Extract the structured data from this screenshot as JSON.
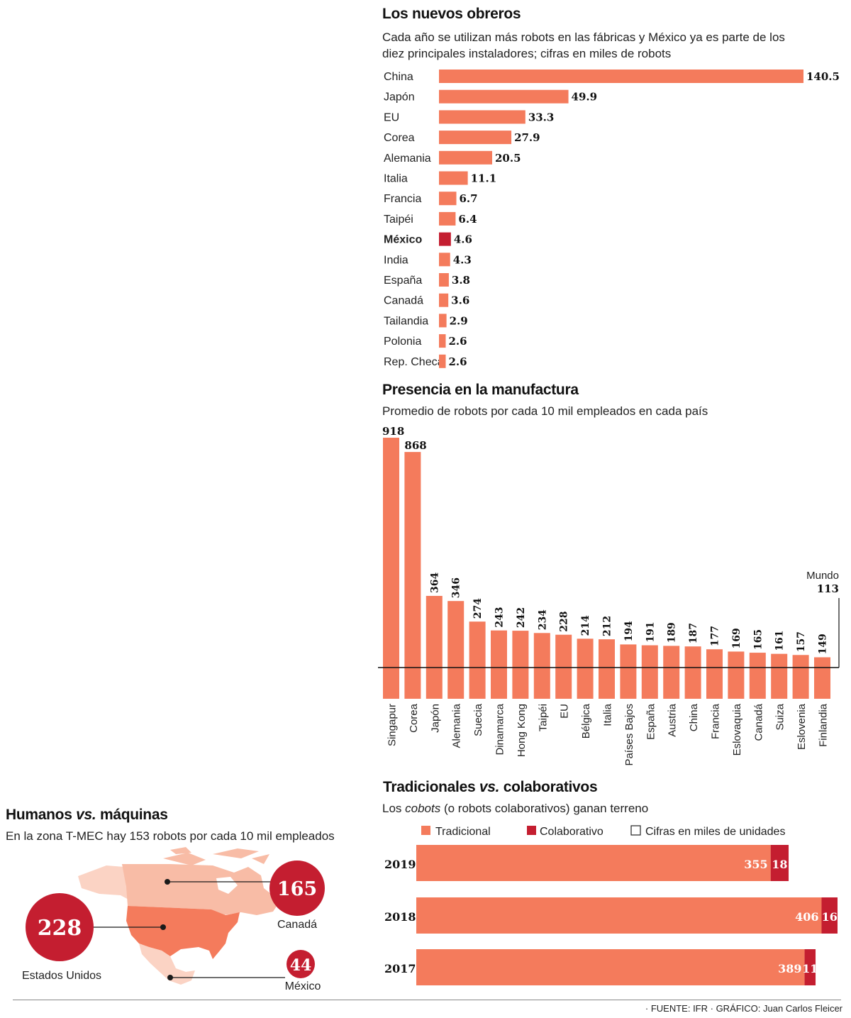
{
  "colors": {
    "bar": "#f47b5c",
    "highlight": "#c41e30",
    "map_light": "#f8bca6",
    "map_mid": "#f47b5c",
    "circle": "#c41e30",
    "text": "#1a1a1a"
  },
  "chart_data": [
    {
      "type": "bar",
      "orientation": "horizontal",
      "title": "Los nuevos obreros",
      "subtitle_line1": "Cada año se utilizan más robots en las fábricas y México ya es parte de los",
      "subtitle_line2": "diez principales instaladores; cifras en miles de robots",
      "categories": [
        "China",
        "Japón",
        "EU",
        "Corea",
        "Alemania",
        "Italia",
        "Francia",
        "Taipéi",
        "México",
        "India",
        "España",
        "Canadá",
        "Tailandia",
        "Polonia",
        "Rep. Checa"
      ],
      "values": [
        140.5,
        49.9,
        33.3,
        27.9,
        20.5,
        11.1,
        6.7,
        6.4,
        4.6,
        4.3,
        3.8,
        3.6,
        2.9,
        2.6,
        2.6
      ],
      "labels": [
        "140.5",
        "49.9",
        "33.3",
        "27.9",
        "20.5",
        "11.1",
        "6.7",
        "6.4",
        "4.6",
        "4.3",
        "3.8",
        "3.6",
        "2.9",
        "2.6",
        "2.6"
      ],
      "highlight": "México",
      "unit": "miles de robots"
    },
    {
      "type": "bar",
      "orientation": "vertical",
      "title": "Presencia en la manufactura",
      "subtitle": "Promedio de robots por cada 10 mil empleados en cada país",
      "categories": [
        "Singapur",
        "Corea",
        "Japón",
        "Alemania",
        "Suecia",
        "Dinamarca",
        "Hong Kong",
        "Taipéi",
        "EU",
        "Bélgica",
        "Italia",
        "Países Bajos",
        "España",
        "Austria",
        "China",
        "Francia",
        "Eslovaquia",
        "Canadá",
        "Suiza",
        "Eslovenia",
        "Finlandia"
      ],
      "values": [
        918,
        868,
        364,
        346,
        274,
        243,
        242,
        234,
        228,
        214,
        212,
        194,
        191,
        189,
        187,
        177,
        169,
        165,
        161,
        157,
        149
      ],
      "labels": [
        "918",
        "868",
        "364",
        "346",
        "274",
        "243",
        "242",
        "234",
        "228",
        "214",
        "212",
        "194",
        "191",
        "189",
        "187",
        "177",
        "169",
        "165",
        "161",
        "157",
        "149"
      ],
      "reference_line": {
        "label": "Mundo",
        "value": 113,
        "value_label": "113"
      }
    },
    {
      "type": "bar",
      "orientation": "horizontal-stacked",
      "title_part1": "Tradicionales ",
      "title_italic": "vs.",
      "title_part2": " colaborativos",
      "subtitle_part1": "Los ",
      "subtitle_italic": "cobots",
      "subtitle_part2": " (o robots colaborativos) ganan terreno",
      "legend": [
        "Tradicional",
        "Colaborativo"
      ],
      "legend_note": "Cifras en miles de unidades",
      "legend_position": "top",
      "categories": [
        "2019",
        "2018",
        "2017"
      ],
      "series": [
        {
          "name": "Tradicional",
          "values": [
            355,
            406,
            389
          ]
        },
        {
          "name": "Colaborativo",
          "values": [
            18,
            16,
            11
          ]
        }
      ]
    },
    {
      "type": "map",
      "title_part1": "Humanos ",
      "title_italic": "vs.",
      "title_part2": " máquinas",
      "subtitle": "En la zona T-MEC hay 153 robots por cada 10 mil empleados",
      "regions": [
        {
          "name": "Estados Unidos",
          "value": 228
        },
        {
          "name": "Canadá",
          "value": 165
        },
        {
          "name": "México",
          "value": 44
        }
      ]
    }
  ],
  "footer": {
    "source": "· FUENTE: IFR · GRÁFICO: Juan Carlos Fleicer"
  }
}
